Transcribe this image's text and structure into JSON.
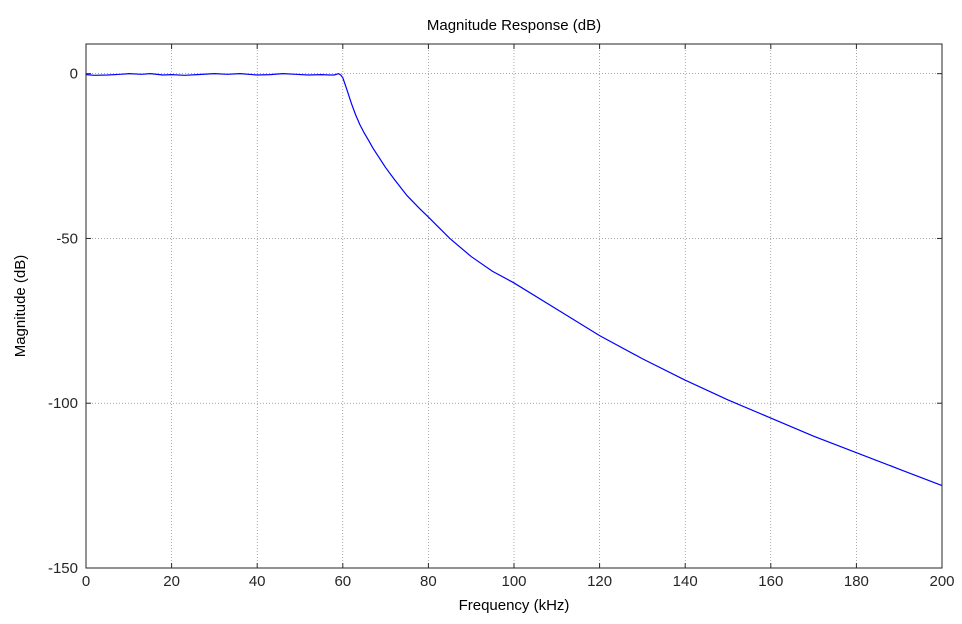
{
  "chart_data": {
    "type": "line",
    "title": "Magnitude Response (dB)",
    "xlabel": "Frequency (kHz)",
    "ylabel": "Magnitude (dB)",
    "xlim": [
      0,
      200
    ],
    "ylim": [
      -150,
      9
    ],
    "xticks": [
      0,
      20,
      40,
      60,
      80,
      100,
      120,
      140,
      160,
      180,
      200
    ],
    "yticks": [
      0,
      -50,
      -100,
      -150
    ],
    "grid": true,
    "line_color": "#0000ff",
    "series": [
      {
        "x": [
          0,
          2,
          5,
          8,
          10,
          13,
          15,
          18,
          20,
          23,
          26,
          30,
          33,
          36,
          40,
          43,
          46,
          49,
          52,
          55,
          57,
          58,
          59,
          59.5,
          60,
          61,
          62,
          63,
          64,
          65,
          66,
          67,
          68,
          70,
          72,
          75,
          78,
          80,
          85,
          90,
          95,
          100,
          110,
          120,
          130,
          140,
          150,
          160,
          170,
          180,
          190,
          200
        ],
        "y": [
          -0.3,
          -0.5,
          -0.4,
          -0.2,
          0,
          -0.2,
          0,
          -0.4,
          -0.3,
          -0.5,
          -0.3,
          0,
          -0.2,
          0,
          -0.4,
          -0.3,
          0,
          -0.2,
          -0.4,
          -0.3,
          -0.4,
          -0.4,
          0,
          -0.4,
          -1.2,
          -5,
          -9,
          -12.5,
          -15.5,
          -18,
          -20.2,
          -22.5,
          -24.5,
          -28.5,
          -32,
          -37,
          -41,
          -43.5,
          -50,
          -55.5,
          -60,
          -63.5,
          -71.5,
          -79.5,
          -86.5,
          -93,
          -99,
          -104.5,
          -110,
          -115,
          -120,
          -125
        ]
      }
    ]
  }
}
